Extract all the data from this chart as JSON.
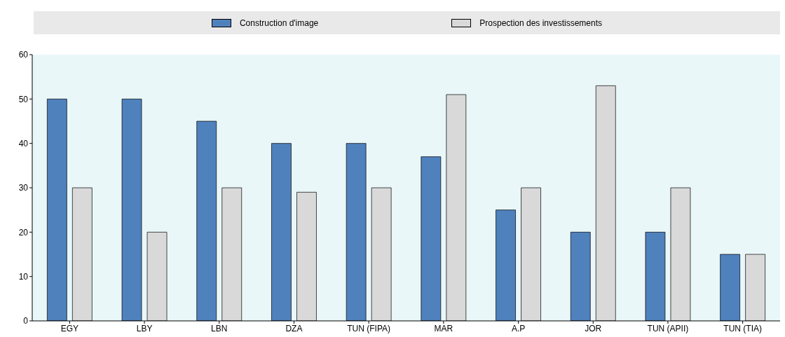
{
  "chart_data": {
    "type": "bar",
    "categories": [
      "EGY",
      "LBY",
      "LBN",
      "DZA",
      "TUN (FIPA)",
      "MAR",
      "A.P",
      "JOR",
      "TUN (APII)",
      "TUN (TIA)"
    ],
    "series": [
      {
        "name": "Construction d'image",
        "color": "#4f81bd",
        "values": [
          50,
          50,
          45,
          40,
          40,
          37,
          25,
          20,
          20,
          15
        ]
      },
      {
        "name": "Prospection des investissements",
        "color": "#d9d9d9",
        "values": [
          30,
          20,
          30,
          29,
          30,
          51,
          30,
          53,
          30,
          15
        ]
      }
    ],
    "ylim": [
      0,
      60
    ],
    "yticks": [
      0,
      10,
      20,
      30,
      40,
      50,
      60
    ],
    "grid": false,
    "legend": "top"
  }
}
